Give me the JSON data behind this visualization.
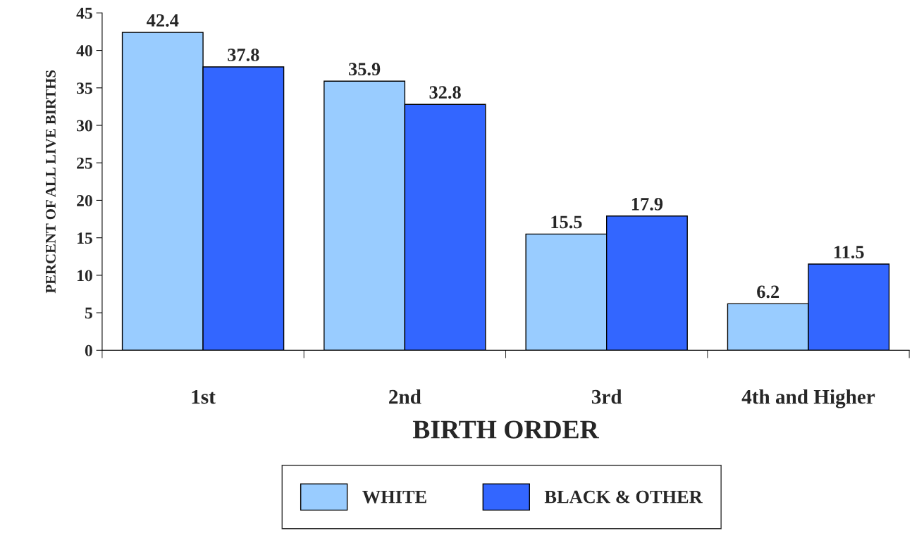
{
  "chart_data": {
    "type": "bar",
    "xlabel": "BIRTH ORDER",
    "ylabel": "PERCENT OF ALL LIVE BIRTHS",
    "categories": [
      "1st",
      "2nd",
      "3rd",
      "4th and Higher"
    ],
    "series": [
      {
        "name": "WHITE",
        "color": "#99ccff",
        "values": [
          42.4,
          35.9,
          15.5,
          6.2
        ]
      },
      {
        "name": "BLACK & OTHER",
        "color": "#3366ff",
        "values": [
          37.8,
          32.8,
          17.9,
          11.5
        ]
      }
    ],
    "ylim": [
      0,
      45
    ],
    "yticks": [
      0,
      5,
      10,
      15,
      20,
      25,
      30,
      35,
      40,
      45
    ],
    "data_labels": true,
    "grid": false,
    "legend": "bottom"
  }
}
